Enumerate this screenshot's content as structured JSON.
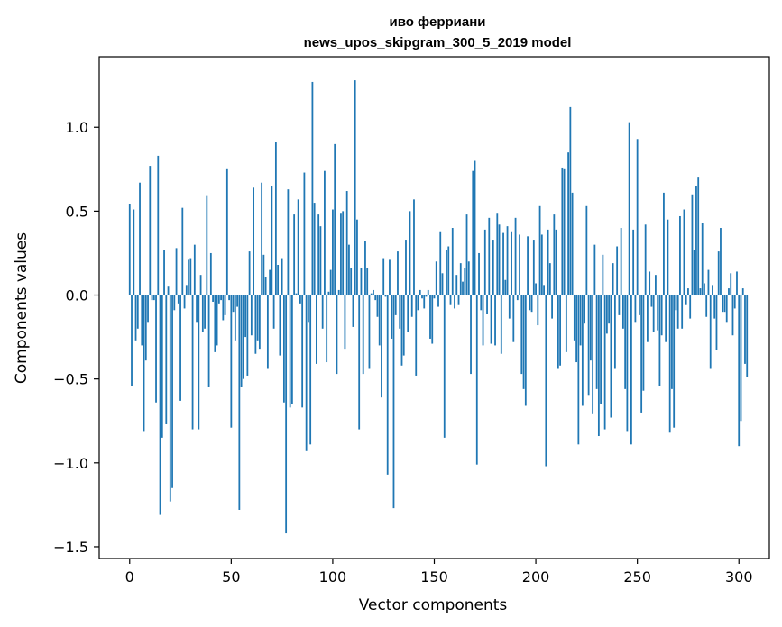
{
  "chart_data": {
    "type": "bar",
    "title": "иво ферриани",
    "subtitle": "news_upos_skipgram_300_5_2019 model",
    "xlabel": "Vector components",
    "ylabel": "Components values",
    "xlim": [
      -15,
      315
    ],
    "ylim": [
      -1.57,
      1.42
    ],
    "xticks": [
      0,
      50,
      100,
      150,
      200,
      250,
      300
    ],
    "xtick_labels": [
      "0",
      "50",
      "100",
      "150",
      "200",
      "250",
      "300"
    ],
    "yticks": [
      -1.5,
      -1.0,
      -0.5,
      0.0,
      0.5,
      1.0
    ],
    "ytick_labels": [
      "−1.5",
      "−1.0",
      "−0.5",
      "0.0",
      "0.5",
      "1.0"
    ],
    "bar_color": "#1f77b4",
    "grid": false,
    "legend": "none",
    "values": [
      0.54,
      -0.54,
      0.51,
      -0.27,
      -0.2,
      0.67,
      -0.3,
      -0.81,
      -0.39,
      -0.16,
      0.77,
      -0.03,
      -0.03,
      -0.64,
      0.83,
      -1.31,
      -0.85,
      0.27,
      -0.77,
      0.05,
      -1.23,
      -1.15,
      -0.09,
      0.28,
      -0.05,
      -0.63,
      0.52,
      -0.08,
      0.06,
      0.21,
      0.22,
      -0.8,
      0.3,
      -0.16,
      -0.8,
      0.12,
      -0.22,
      -0.2,
      0.59,
      -0.55,
      0.25,
      -0.04,
      -0.34,
      -0.3,
      -0.05,
      -0.03,
      -0.15,
      -0.12,
      0.75,
      -0.03,
      -0.79,
      -0.1,
      -0.27,
      -0.07,
      -1.28,
      -0.55,
      -0.5,
      -0.25,
      -0.48,
      0.26,
      -0.24,
      0.64,
      -0.35,
      -0.27,
      -0.32,
      0.67,
      0.24,
      0.11,
      -0.44,
      0.15,
      0.65,
      -0.2,
      0.91,
      0.18,
      -0.36,
      0.22,
      -0.64,
      -1.42,
      0.63,
      -0.67,
      -0.65,
      0.48,
      0.01,
      0.57,
      -0.05,
      -0.67,
      0.73,
      -0.93,
      -0.16,
      -0.89,
      1.27,
      0.55,
      -0.41,
      0.48,
      0.41,
      -0.2,
      0.74,
      -0.4,
      0.02,
      0.15,
      0.51,
      0.9,
      -0.47,
      0.03,
      0.49,
      0.5,
      -0.32,
      0.62,
      0.3,
      0.16,
      -0.19,
      1.28,
      0.45,
      -0.8,
      0.16,
      -0.47,
      0.32,
      0.16,
      -0.44,
      0.01,
      0.03,
      -0.03,
      -0.13,
      -0.3,
      -0.61,
      0.22,
      -0.01,
      -1.07,
      0.21,
      -0.26,
      -1.27,
      -0.12,
      0.26,
      -0.2,
      -0.42,
      -0.36,
      0.33,
      -0.22,
      0.5,
      -0.13,
      0.57,
      -0.48,
      -0.09,
      0.03,
      -0.02,
      -0.08,
      -0.01,
      0.03,
      -0.26,
      -0.29,
      -0.02,
      0.2,
      -0.07,
      0.38,
      0.13,
      -0.85,
      0.27,
      0.29,
      -0.06,
      0.4,
      -0.08,
      0.12,
      -0.06,
      0.19,
      0.08,
      0.16,
      0.48,
      0.2,
      -0.47,
      0.74,
      0.8,
      -1.01,
      0.25,
      -0.09,
      -0.3,
      0.39,
      -0.11,
      0.46,
      -0.29,
      0.33,
      -0.3,
      0.49,
      0.42,
      -0.35,
      0.37,
      0.09,
      0.41,
      -0.14,
      0.38,
      -0.28,
      0.46,
      -0.03,
      0.36,
      -0.47,
      -0.56,
      -0.66,
      0.35,
      -0.09,
      -0.1,
      0.33,
      0.07,
      -0.18,
      0.53,
      0.36,
      0.06,
      -1.02,
      0.39,
      0.19,
      -0.14,
      0.48,
      0.39,
      -0.44,
      -0.42,
      0.76,
      0.75,
      -0.34,
      0.85,
      1.12,
      0.61,
      -0.27,
      -0.4,
      -0.89,
      -0.3,
      -0.66,
      -0.17,
      0.53,
      -0.6,
      -0.39,
      -0.71,
      0.3,
      -0.56,
      -0.84,
      -0.65,
      0.24,
      -0.8,
      -0.23,
      -0.17,
      -0.73,
      0.19,
      -0.44,
      0.29,
      -0.12,
      0.4,
      -0.2,
      -0.56,
      -0.81,
      1.03,
      -0.89,
      0.39,
      -0.16,
      0.93,
      -0.12,
      -0.7,
      -0.57,
      0.42,
      -0.28,
      0.14,
      -0.07,
      -0.22,
      0.12,
      -0.21,
      -0.54,
      -0.24,
      0.61,
      -0.28,
      0.45,
      -0.82,
      -0.56,
      -0.79,
      -0.09,
      -0.2,
      0.47,
      -0.2,
      0.51,
      -0.06,
      0.04,
      -0.14,
      0.6,
      0.27,
      0.65,
      0.7,
      0.04,
      0.43,
      0.07,
      -0.13,
      0.15,
      -0.44,
      0.06,
      -0.14,
      -0.33,
      0.26,
      0.4,
      -0.1,
      -0.1,
      -0.16,
      0.04,
      0.13,
      -0.24,
      -0.08,
      0.14,
      -0.9,
      -0.75,
      0.04,
      -0.41,
      -0.49
    ]
  }
}
